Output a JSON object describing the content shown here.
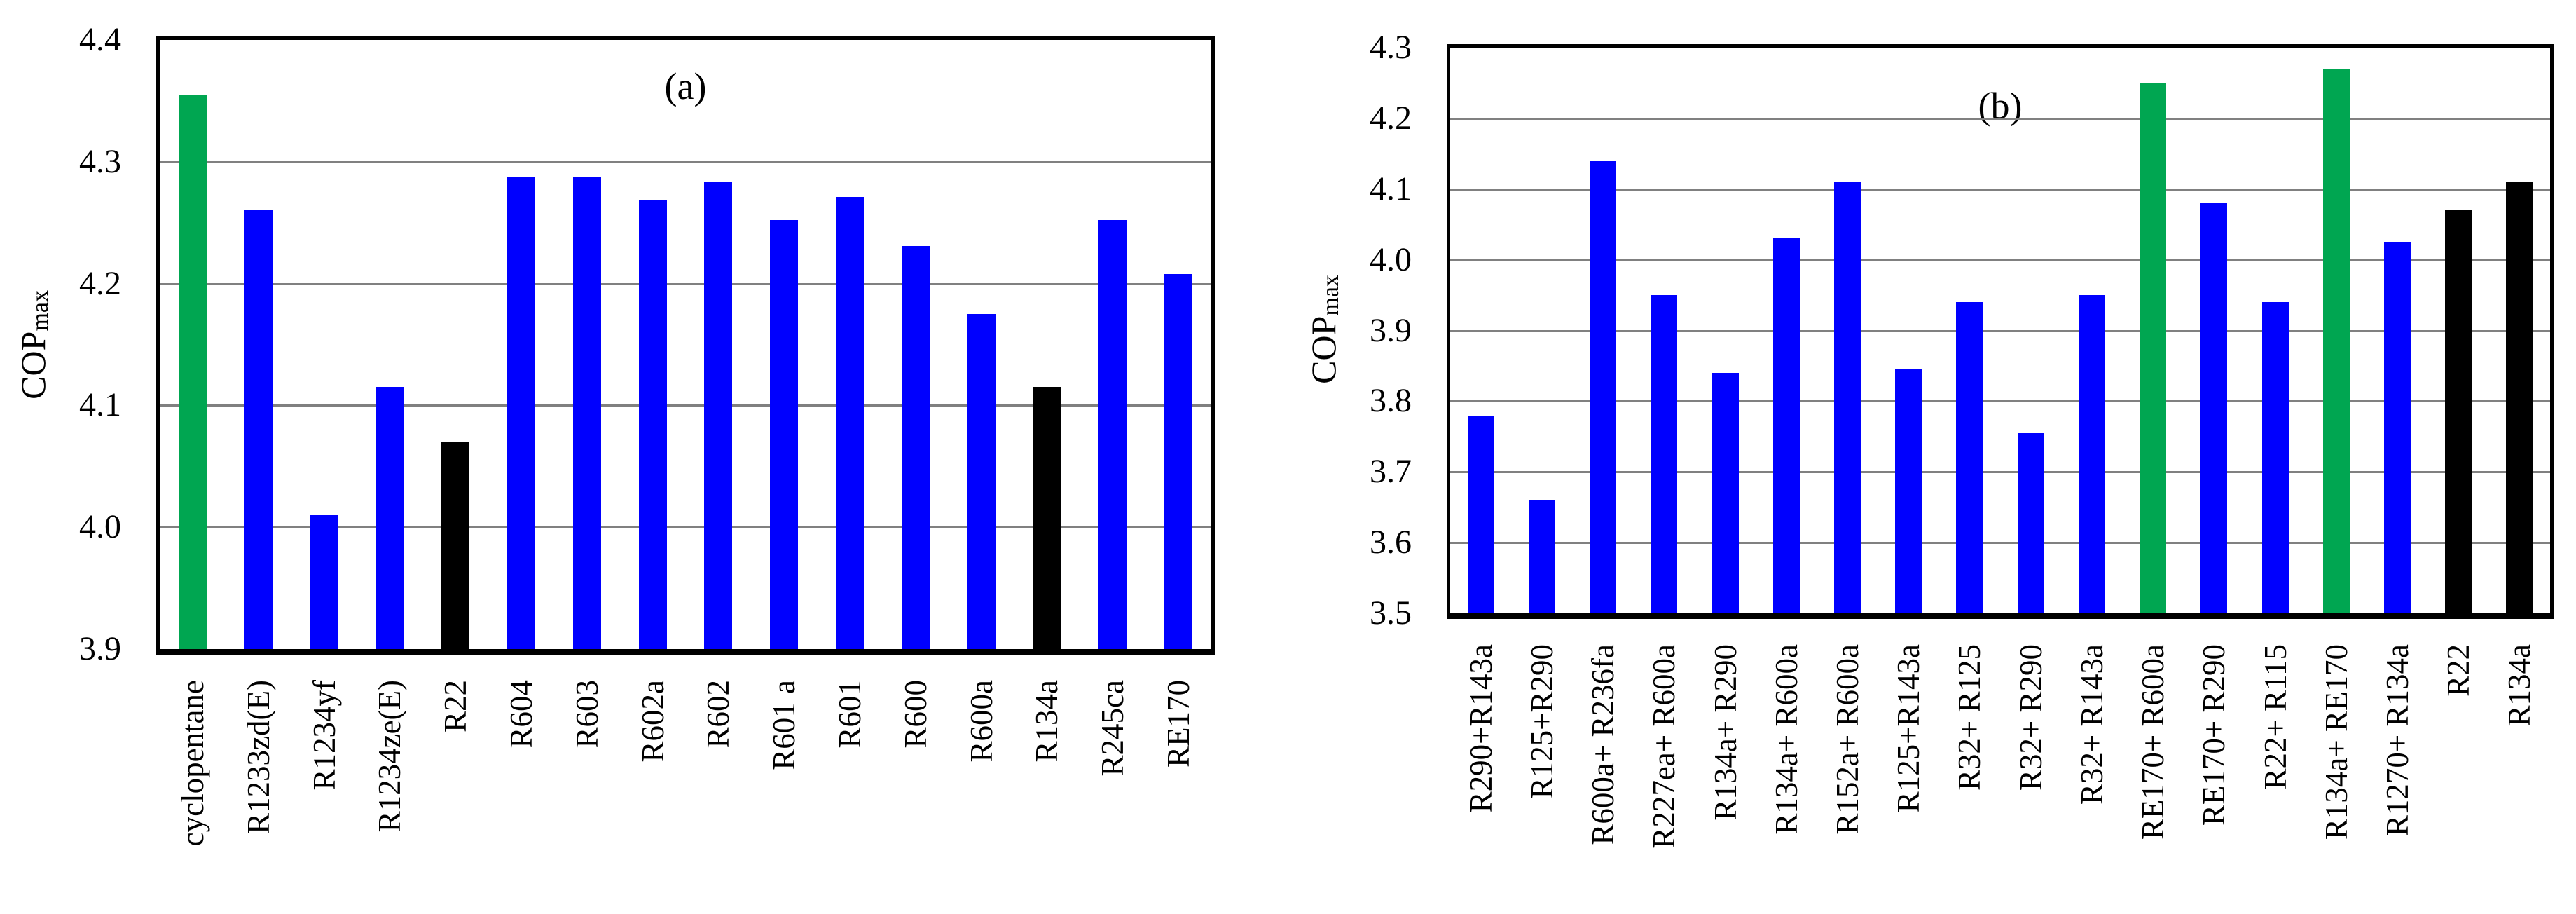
{
  "palette": {
    "green": "#00A651",
    "blue": "#0000FE",
    "black": "#000000",
    "gridline": "#808080",
    "axis": "#000000",
    "text": "#000000",
    "background": "#FFFFFF"
  },
  "chart_data": [
    {
      "type": "bar",
      "panel_label": "(a)",
      "title": "",
      "xlabel": "",
      "ylabel": "COP",
      "ylabel_subscript": "max",
      "ylim": [
        3.9,
        4.4
      ],
      "ytick_step": 0.1,
      "yticks": [
        "3.9",
        "4.0",
        "4.1",
        "4.2",
        "4.3",
        "4.4"
      ],
      "grid": "horizontal",
      "legend": "none",
      "categories": [
        "cyclopentane",
        "R1233zd(E)",
        "R1234yf",
        "R1234ze(E)",
        "R22",
        "R604",
        "R603",
        "R602a",
        "R602",
        "R601 a",
        "R601",
        "R600",
        "R600a",
        "R134a",
        "R245ca",
        "RE170"
      ],
      "values": [
        4.355,
        4.26,
        4.01,
        4.115,
        4.07,
        4.287,
        4.287,
        4.268,
        4.284,
        4.252,
        4.271,
        4.231,
        4.175,
        4.115,
        4.252,
        4.208
      ],
      "bar_colors": [
        "green",
        "blue",
        "blue",
        "blue",
        "black",
        "blue",
        "blue",
        "blue",
        "blue",
        "blue",
        "blue",
        "blue",
        "blue",
        "black",
        "blue",
        "blue"
      ]
    },
    {
      "type": "bar",
      "panel_label": "(b)",
      "title": "",
      "xlabel": "",
      "ylabel": "COP",
      "ylabel_subscript": "max",
      "ylim": [
        3.5,
        4.3
      ],
      "ytick_step": 0.1,
      "yticks": [
        "3.5",
        "3.6",
        "3.7",
        "3.8",
        "3.9",
        "4.0",
        "4.1",
        "4.2",
        "4.3"
      ],
      "grid": "horizontal",
      "legend": "none",
      "categories": [
        "R290+R143a",
        "R125+R290",
        "R600a+ R236fa",
        "R227ea+ R600a",
        "R134a+ R290",
        "R134a+ R600a",
        "R152a+ R600a",
        "R125+R143a",
        "R32+ R125",
        "R32+ R290",
        "R32+ R143a",
        "RE170+ R600a",
        "RE170+ R290",
        "R22+ R115",
        "R134a+ RE170",
        "R1270+ R134a",
        "R22",
        "R134a"
      ],
      "values": [
        3.78,
        3.66,
        4.14,
        3.95,
        3.84,
        4.03,
        4.11,
        3.845,
        3.94,
        3.755,
        3.95,
        4.25,
        4.08,
        3.94,
        4.27,
        4.025,
        4.07,
        4.11
      ],
      "bar_colors": [
        "blue",
        "blue",
        "blue",
        "blue",
        "blue",
        "blue",
        "blue",
        "blue",
        "blue",
        "blue",
        "blue",
        "green",
        "blue",
        "blue",
        "green",
        "blue",
        "black",
        "black"
      ]
    }
  ]
}
